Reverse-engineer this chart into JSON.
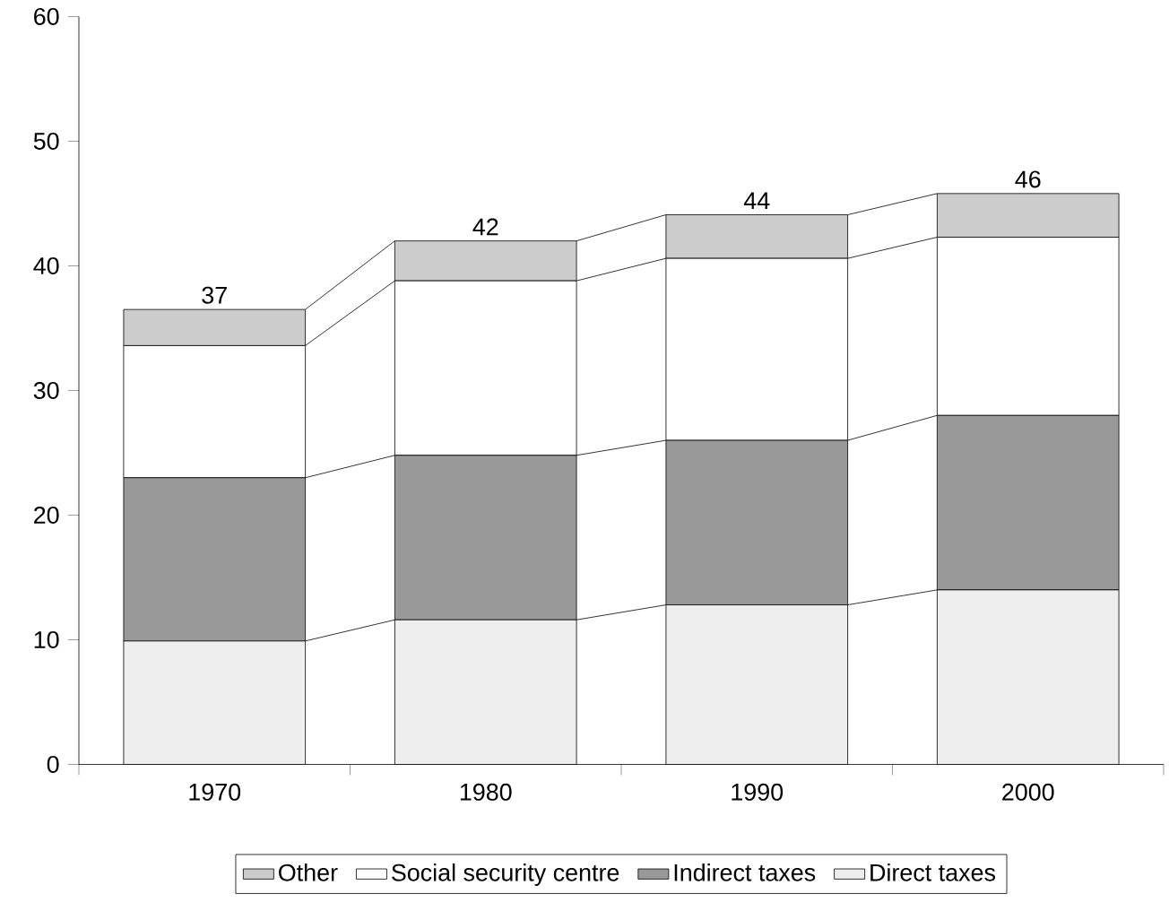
{
  "chart_data": {
    "type": "bar",
    "stacked": true,
    "categories": [
      "1970",
      "1980",
      "1990",
      "2000"
    ],
    "series": [
      {
        "name": "Direct taxes",
        "color": "#eeeeee",
        "values": [
          9.9,
          11.6,
          12.8,
          14.0
        ]
      },
      {
        "name": "Indirect taxes",
        "color": "#999999",
        "values": [
          13.1,
          13.2,
          13.2,
          14.0
        ]
      },
      {
        "name": "Social security centre",
        "color": "#ffffff",
        "values": [
          10.6,
          14.0,
          14.6,
          14.3
        ]
      },
      {
        "name": "Other",
        "color": "#cccccc",
        "values": [
          2.9,
          3.2,
          3.5,
          3.5
        ]
      }
    ],
    "totals": [
      "37",
      "42",
      "44",
      "46"
    ],
    "ylim": [
      0,
      60
    ],
    "yticks": [
      0,
      10,
      20,
      30,
      40,
      50,
      60
    ],
    "legend": "bottom"
  }
}
